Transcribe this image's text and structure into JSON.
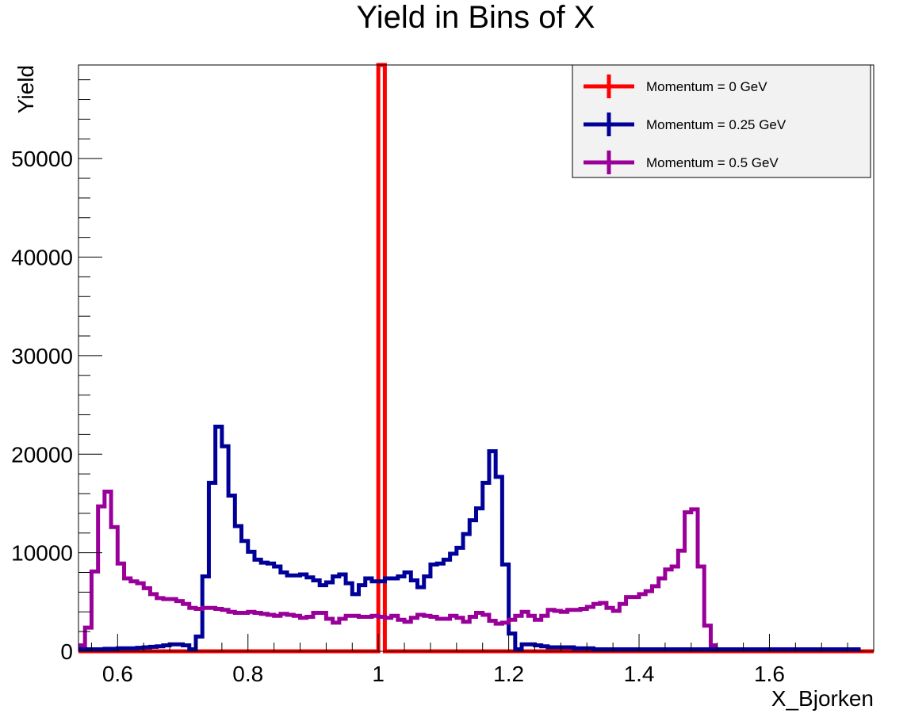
{
  "chart_data": {
    "type": "line",
    "title": "Yield in Bins of X",
    "xlabel": "X_Bjorken",
    "ylabel": "Yield",
    "xlim": [
      0.54,
      1.76
    ],
    "ylim": [
      0,
      59500
    ],
    "x_ticks": [
      {
        "value": 0.6,
        "label": "0.6"
      },
      {
        "value": 0.8,
        "label": "0.8"
      },
      {
        "value": 1.0,
        "label": "1"
      },
      {
        "value": 1.2,
        "label": "1.2"
      },
      {
        "value": 1.4,
        "label": "1.4"
      },
      {
        "value": 1.6,
        "label": "1.6"
      }
    ],
    "y_ticks": [
      {
        "value": 0,
        "label": "0"
      },
      {
        "value": 10000,
        "label": "10000"
      },
      {
        "value": 20000,
        "label": "20000"
      },
      {
        "value": 30000,
        "label": "30000"
      },
      {
        "value": 40000,
        "label": "40000"
      },
      {
        "value": 50000,
        "label": "50000"
      }
    ],
    "bin_start": 0.54,
    "bin_width": 0.01,
    "series": [
      {
        "name": "Momentum = 0 GeV",
        "color": "#ff0000",
        "values": [
          0,
          0,
          0,
          0,
          0,
          0,
          0,
          0,
          0,
          0,
          0,
          0,
          0,
          0,
          0,
          0,
          0,
          0,
          0,
          0,
          0,
          0,
          0,
          0,
          0,
          0,
          0,
          0,
          0,
          0,
          0,
          0,
          0,
          0,
          0,
          0,
          0,
          0,
          0,
          0,
          0,
          0,
          0,
          0,
          0,
          0,
          59500,
          0,
          0,
          0,
          0,
          0,
          0,
          0,
          0,
          0,
          0,
          0,
          0,
          0,
          0,
          0,
          0,
          0,
          0,
          0,
          0,
          0,
          0,
          0,
          0,
          0,
          0,
          0,
          0,
          0,
          0,
          0,
          0,
          0,
          0,
          0,
          0,
          0,
          0,
          0,
          0,
          0,
          0,
          0,
          0,
          0,
          0,
          0,
          0,
          0,
          0,
          0,
          0,
          0,
          0,
          0,
          0,
          0,
          0,
          0,
          0,
          0,
          0,
          0,
          0,
          0,
          0,
          0,
          0,
          0,
          0,
          0,
          0,
          0,
          0,
          0
        ]
      },
      {
        "name": "Momentum = 0.25 GeV",
        "color": "#000099",
        "values": [
          200,
          200,
          200,
          200,
          250,
          250,
          300,
          300,
          300,
          350,
          400,
          450,
          500,
          600,
          700,
          700,
          600,
          200,
          1500,
          7600,
          17100,
          22800,
          20800,
          15800,
          12700,
          11200,
          10100,
          9300,
          9000,
          8900,
          8600,
          8000,
          7700,
          7700,
          7800,
          7500,
          7200,
          6700,
          7000,
          7600,
          7800,
          6900,
          5800,
          6700,
          7400,
          7100,
          7100,
          7400,
          7400,
          7600,
          8000,
          7200,
          6500,
          7600,
          8800,
          8900,
          9300,
          9900,
          10500,
          11900,
          13300,
          14500,
          17100,
          20300,
          17700,
          8800,
          1800,
          200,
          700,
          700,
          600,
          500,
          400,
          400,
          400,
          400,
          300,
          300,
          300,
          200,
          200,
          200,
          200,
          200,
          200,
          200,
          200,
          200,
          200,
          200,
          200,
          200,
          200,
          200,
          200,
          200,
          200,
          200,
          200,
          200,
          200,
          200,
          200,
          200,
          200,
          200,
          200,
          200,
          200,
          200,
          200,
          200,
          200,
          200,
          200,
          200,
          200,
          200,
          200,
          200
        ]
      },
      {
        "name": "Momentum = 0.5 GeV",
        "color": "#990099",
        "values": [
          600,
          2400,
          8100,
          14700,
          16200,
          12600,
          8900,
          7400,
          7100,
          6900,
          6400,
          5800,
          5400,
          5300,
          5300,
          5100,
          4800,
          4400,
          4300,
          4400,
          4400,
          4300,
          4200,
          4000,
          3900,
          3900,
          4000,
          3900,
          3800,
          3700,
          3600,
          3800,
          3700,
          3600,
          3400,
          3500,
          3900,
          3900,
          3300,
          2900,
          3300,
          3600,
          3600,
          3500,
          3500,
          3600,
          3500,
          3400,
          3600,
          3200,
          3000,
          3400,
          3700,
          3600,
          3500,
          3300,
          3300,
          3600,
          3400,
          3000,
          3500,
          3900,
          3700,
          3100,
          2800,
          2900,
          3200,
          3600,
          4000,
          3600,
          3200,
          3600,
          4200,
          4100,
          4000,
          4200,
          4200,
          4300,
          4500,
          4800,
          4900,
          4400,
          4100,
          4800,
          5500,
          5500,
          5800,
          6100,
          6600,
          7400,
          8300,
          8600,
          10200,
          14100,
          14400,
          8600,
          2600,
          600
        ]
      }
    ],
    "legend": {
      "position": "top-right",
      "background": "#f2f2f2"
    }
  }
}
